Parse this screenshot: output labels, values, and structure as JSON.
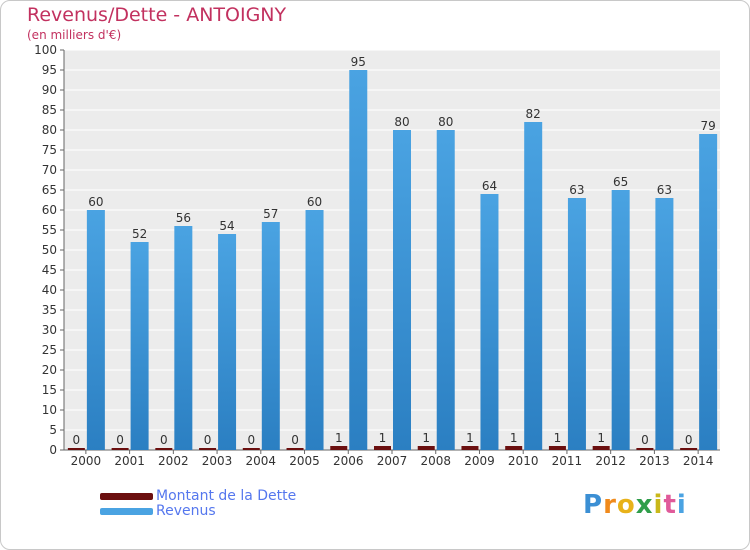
{
  "title": "Revenus/Dette - ANTOIGNY",
  "subtitle": "(en milliers d'€)",
  "colors": {
    "title": "#c2315f",
    "legend_text": "#5577ee",
    "debt": "#6b0f0f",
    "revenue": "#4aa3e2",
    "revenue_dark": "#2b7fc2"
  },
  "chart_data": {
    "type": "bar",
    "categories": [
      "2000",
      "2001",
      "2002",
      "2003",
      "2004",
      "2005",
      "2006",
      "2007",
      "2008",
      "2009",
      "2010",
      "2011",
      "2012",
      "2013",
      "2014"
    ],
    "series": [
      {
        "name": "Montant de la Dette",
        "values": [
          0,
          0,
          0,
          0,
          0,
          0,
          1,
          1,
          1,
          1,
          1,
          1,
          1,
          0,
          0
        ]
      },
      {
        "name": "Revenus",
        "values": [
          60,
          52,
          56,
          54,
          57,
          60,
          95,
          80,
          80,
          64,
          82,
          63,
          65,
          63,
          79
        ]
      }
    ],
    "ylim": [
      0,
      100
    ],
    "ytick_step": 5,
    "grid": true,
    "legend_position": "bottom-left"
  },
  "legend": {
    "debt_label": "Montant de la Dette",
    "revenue_label": "Revenus"
  },
  "logo": {
    "letters": [
      "P",
      "r",
      "o",
      "x",
      "i",
      "t",
      "i"
    ],
    "colors": [
      "#3b8fd4",
      "#f08a1c",
      "#e8b21a",
      "#2f9e4a",
      "#c9b81a",
      "#e05a9a",
      "#4aa3e2"
    ]
  }
}
